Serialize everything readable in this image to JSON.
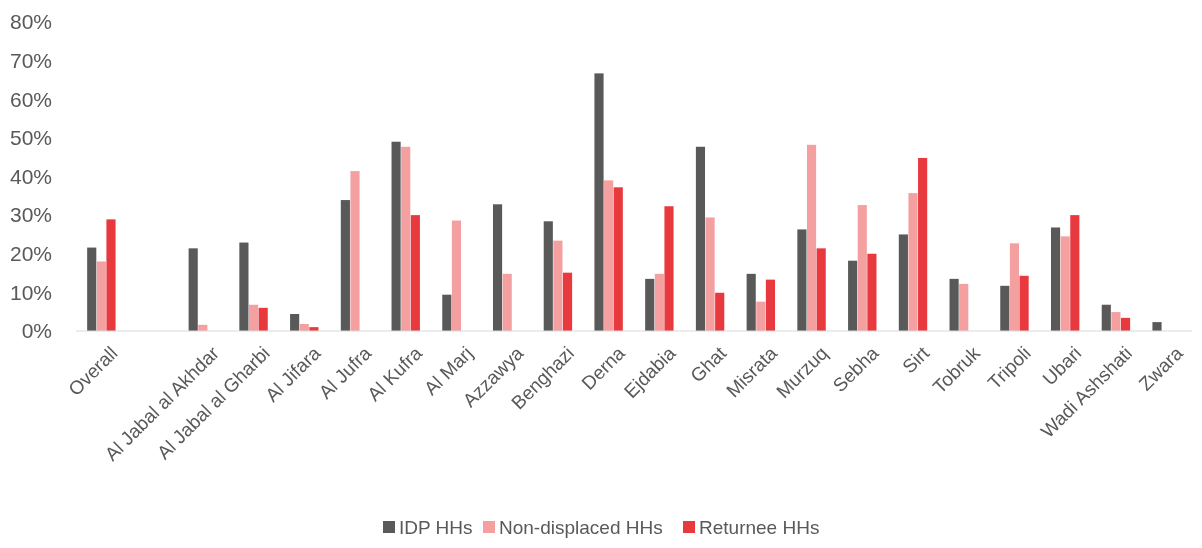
{
  "chart_data": {
    "type": "bar",
    "categories": [
      "Overall",
      null,
      "Al Jabal al Akhdar",
      "Al Jabal al Gharbi",
      "Al Jifara",
      "Al Jufra",
      "Al Kufra",
      "Al Marj",
      "Azzawya",
      "Benghazi",
      "Derna",
      "Ejdabia",
      "Ghat",
      "Misrata",
      "Murzuq",
      "Sebha",
      "Sirt",
      "Tobruk",
      "Tripoli",
      "Ubari",
      "Wadi Ashshati",
      "Zwara"
    ],
    "series": [
      {
        "name": "IDP HHs",
        "color": "#595959",
        "values": [
          21.6,
          null,
          21.4,
          22.9,
          4.4,
          33.9,
          49,
          9.4,
          32.8,
          28.4,
          66.7,
          13.5,
          47.7,
          14.8,
          26.3,
          18.2,
          25,
          13.5,
          11.7,
          26.8,
          6.8,
          2.3
        ]
      },
      {
        "name": "Non-displaced HHs",
        "color": "#f4a0a0",
        "values": [
          18,
          null,
          1.6,
          6.8,
          1.8,
          41.4,
          47.7,
          28.6,
          14.8,
          23.4,
          39,
          14.8,
          29.4,
          7.6,
          48.2,
          32.6,
          35.7,
          12.2,
          22.7,
          24.5,
          4.9,
          null
        ]
      },
      {
        "name": "Returnee HHs",
        "color": "#e8393f",
        "values": [
          28.9,
          null,
          null,
          6,
          1,
          null,
          30,
          null,
          null,
          15.1,
          37.2,
          32.3,
          9.9,
          13.3,
          21.4,
          20,
          44.8,
          null,
          14.3,
          30,
          3.4,
          null
        ]
      }
    ],
    "ylim": [
      0,
      80
    ],
    "yticks": [
      {
        "value": 0,
        "label": "0%"
      },
      {
        "value": 10,
        "label": "10%"
      },
      {
        "value": 20,
        "label": "20%"
      },
      {
        "value": 30,
        "label": "30%"
      },
      {
        "value": 40,
        "label": "40%"
      },
      {
        "value": 50,
        "label": "50%"
      },
      {
        "value": 60,
        "label": "60%"
      },
      {
        "value": 70,
        "label": "70%"
      },
      {
        "value": 80,
        "label": "80%"
      }
    ],
    "grid": false,
    "legend": "bottom"
  }
}
